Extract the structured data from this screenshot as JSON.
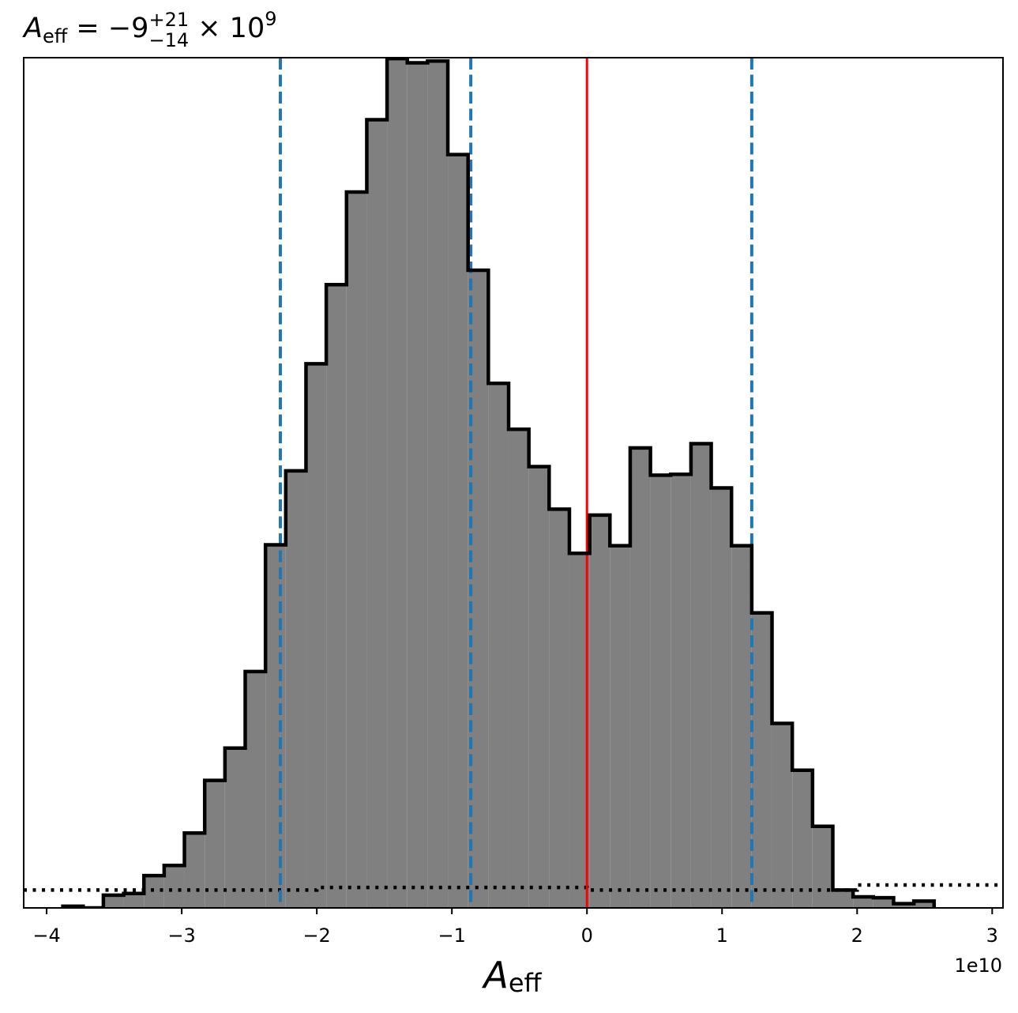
{
  "chart_data": {
    "type": "histogram",
    "title_parts": {
      "symbol": "A",
      "subscript": "eff",
      "equals": " = ",
      "median": "−9",
      "upper": "+21",
      "lower": "−14",
      "times": " × 10",
      "exponent": "9"
    },
    "xlabel_parts": {
      "symbol": "A",
      "subscript": "eff"
    },
    "offset_label": "1e10",
    "x_scale": 10000000000,
    "xlim": [
      -4.17,
      3.08
    ],
    "ylim": [
      0,
      1.0
    ],
    "xticks": [
      -4,
      -3,
      -2,
      -1,
      0,
      1,
      2,
      3
    ],
    "xtick_labels": [
      "−4",
      "−3",
      "−2",
      "−1",
      "0",
      "1",
      "2",
      "3"
    ],
    "bin_edges": [
      -3.88,
      -3.73,
      -3.58,
      -3.43,
      -3.28,
      -3.13,
      -2.98,
      -2.83,
      -2.68,
      -2.53,
      -2.38,
      -2.23,
      -2.08,
      -1.93,
      -1.78,
      -1.63,
      -1.48,
      -1.33,
      -1.18,
      -1.03,
      -0.88,
      -0.73,
      -0.58,
      -0.43,
      -0.28,
      -0.13,
      0.02,
      0.17,
      0.32,
      0.47,
      0.62,
      0.77,
      0.92,
      1.07,
      1.22,
      1.37,
      1.52,
      1.67,
      1.82,
      1.97,
      2.12,
      2.27,
      2.42,
      2.57
    ],
    "counts": [
      0.002,
      0.0,
      0.015,
      0.017,
      0.038,
      0.05,
      0.088,
      0.15,
      0.188,
      0.278,
      0.427,
      0.514,
      0.64,
      0.733,
      0.842,
      0.927,
      0.999,
      0.994,
      0.996,
      0.886,
      0.75,
      0.617,
      0.563,
      0.519,
      0.469,
      0.417,
      0.462,
      0.426,
      0.541,
      0.509,
      0.51,
      0.546,
      0.494,
      0.426,
      0.347,
      0.217,
      0.162,
      0.096,
      0.021,
      0.013,
      0.012,
      0.005,
      0.008,
      0.0
    ],
    "fill_color": "#808080",
    "edge_color": "#000000",
    "quantile_lines": {
      "values": [
        -2.27,
        -0.86,
        1.22
      ],
      "color": "#1f77b4",
      "style": "dashed"
    },
    "truth_line": {
      "value": 0,
      "color": "#ff0000"
    },
    "prior_line": {
      "x": [
        -4.17,
        -2.0,
        -2.0,
        0.0,
        0.0,
        2.0,
        2.0,
        3.08
      ],
      "y": [
        0.021,
        0.021,
        0.024,
        0.024,
        0.021,
        0.021,
        0.027,
        0.027
      ],
      "color": "#000000",
      "style": "dotted"
    },
    "grid": false
  }
}
